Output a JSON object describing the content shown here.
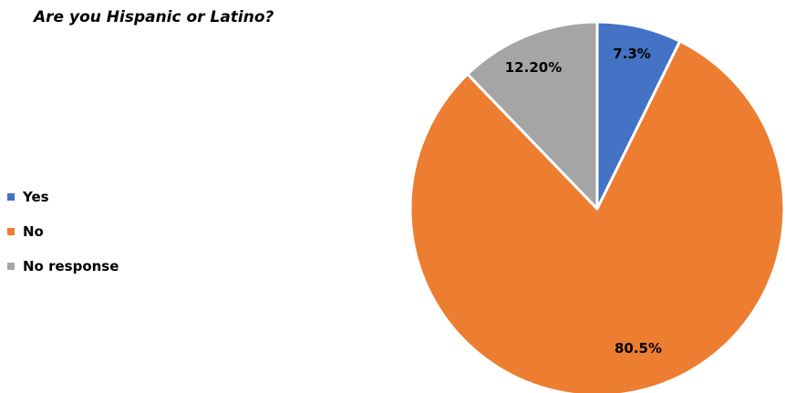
{
  "chart_data": {
    "type": "pie",
    "title": "Are you Hispanic or Latino?",
    "legend_position": "left",
    "slices": [
      {
        "name": "Yes",
        "value": 7.3,
        "label": "7.3%",
        "color": "#4472C4"
      },
      {
        "name": "No",
        "value": 80.5,
        "label": "80.5%",
        "color": "#ED7D31"
      },
      {
        "name": "No response",
        "value": 12.2,
        "label": "12.20%",
        "color": "#A5A5A5"
      }
    ]
  }
}
